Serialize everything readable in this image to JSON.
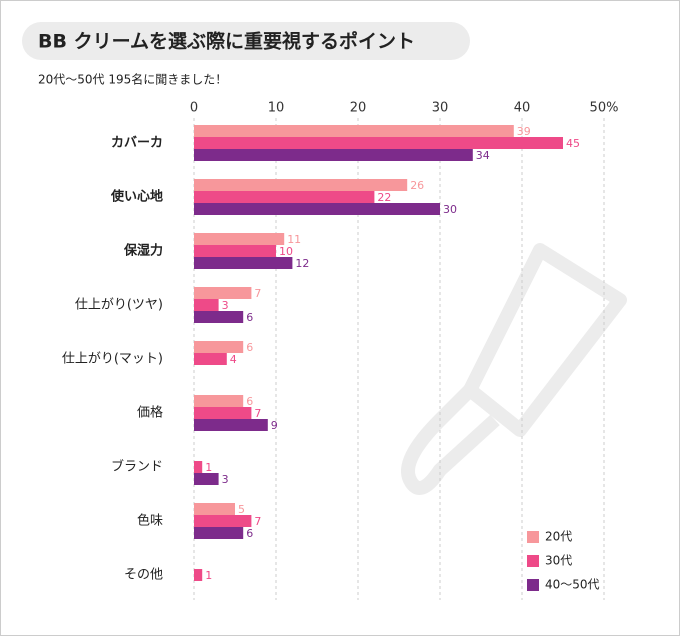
{
  "chart_data": {
    "type": "bar",
    "orientation": "horizontal",
    "title": "BB クリームを選ぶ際に重要視するポイント",
    "subtitle": "20代〜50代 195名に聞きました！",
    "categories": [
      "カバーカ",
      "使い心地",
      "保湿力",
      "仕上がり(ツヤ)",
      "仕上がり(マット)",
      "価格",
      "ブランド",
      "色味",
      "その他"
    ],
    "series": [
      {
        "name": "20代",
        "color": "#f7979b",
        "values": [
          39,
          26,
          11,
          7,
          6,
          6,
          null,
          5,
          null
        ]
      },
      {
        "name": "30代",
        "color": "#ee4a88",
        "values": [
          45,
          22,
          10,
          3,
          4,
          7,
          1,
          7,
          1
        ]
      },
      {
        "name": "40〜50代",
        "color": "#7d2b8b",
        "values": [
          34,
          30,
          12,
          6,
          null,
          9,
          3,
          6,
          null
        ]
      }
    ],
    "xlim": [
      0,
      50
    ],
    "xticks": [
      0,
      10,
      20,
      30,
      40,
      {
        "value": 50,
        "label": "50%"
      }
    ],
    "grid": true,
    "legend": "lower right"
  }
}
